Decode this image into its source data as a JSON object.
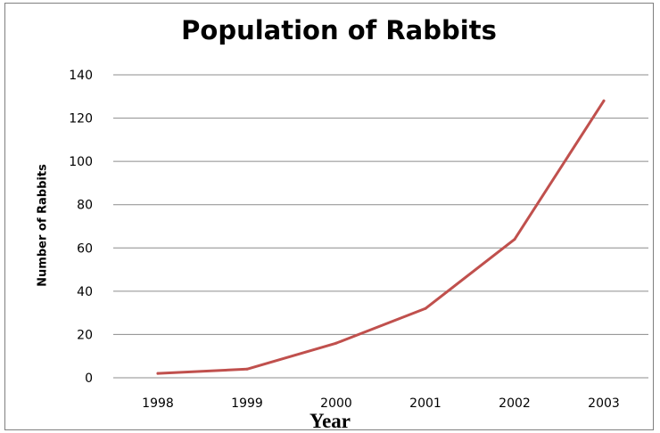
{
  "chart_data": {
    "type": "line",
    "title": "Population of Rabbits",
    "xlabel": "Year",
    "ylabel": "Number of Rabbits",
    "categories": [
      "1998",
      "1999",
      "2000",
      "2001",
      "2002",
      "2003"
    ],
    "series": [
      {
        "values": [
          2,
          4,
          16,
          32,
          64,
          128
        ],
        "color": "#c0504d"
      }
    ],
    "ylim": [
      0,
      140
    ],
    "yticks": [
      0,
      20,
      40,
      60,
      80,
      100,
      120,
      140
    ],
    "grid": "horizontal",
    "legend": "none"
  }
}
